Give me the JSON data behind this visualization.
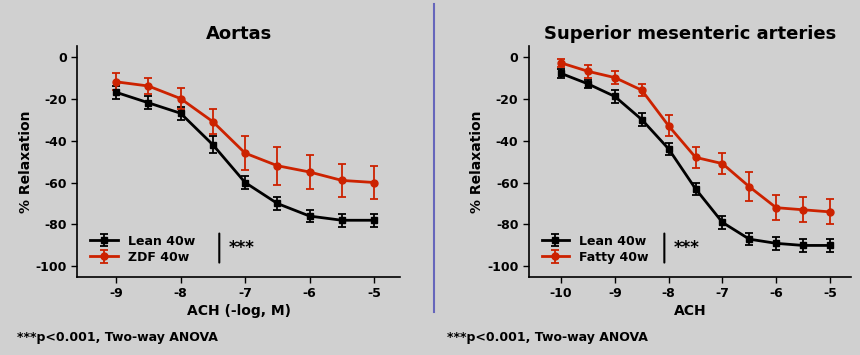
{
  "fig_bg": "#d0d0d0",
  "plot_bg": "#d0d0d0",
  "aorta": {
    "title": "Aortas",
    "xlabel": "ACH (-log, M)",
    "ylabel": "% Relaxation",
    "xlim": [
      -9.6,
      -4.6
    ],
    "ylim": [
      -105,
      5
    ],
    "xticks": [
      -9,
      -8,
      -7,
      -6,
      -5
    ],
    "yticks": [
      0,
      -20,
      -40,
      -60,
      -80,
      -100
    ],
    "lean_x": [
      -9,
      -8.5,
      -8,
      -7.5,
      -7,
      -6.5,
      -6,
      -5.5,
      -5
    ],
    "lean_y": [
      -17,
      -22,
      -27,
      -42,
      -60,
      -70,
      -76,
      -78,
      -78
    ],
    "lean_err": [
      3,
      3,
      3,
      4,
      3,
      3,
      3,
      3,
      3
    ],
    "zdf_x": [
      -9,
      -8.5,
      -8,
      -7.5,
      -7,
      -6.5,
      -6,
      -5.5,
      -5
    ],
    "zdf_y": [
      -12,
      -14,
      -20,
      -31,
      -46,
      -52,
      -55,
      -59,
      -60
    ],
    "zdf_err": [
      4,
      4,
      5,
      6,
      8,
      9,
      8,
      8,
      8
    ],
    "lean_label": "Lean 40w",
    "zdf_label": "ZDF 40w",
    "lean_color": "#000000",
    "zdf_color": "#cc2200",
    "annotation": "***",
    "footer": "***p<0.001, Two-way ANOVA"
  },
  "sma": {
    "title": "Superior mesenteric arteries",
    "xlabel": "ACH",
    "ylabel": "% Relaxation",
    "xlim": [
      -10.6,
      -4.6
    ],
    "ylim": [
      -105,
      5
    ],
    "xticks": [
      -10,
      -9,
      -8,
      -7,
      -6,
      -5
    ],
    "yticks": [
      0,
      -20,
      -40,
      -60,
      -80,
      -100
    ],
    "lean_x": [
      -10,
      -9.5,
      -9,
      -8.5,
      -8,
      -7.5,
      -7,
      -6.5,
      -6,
      -5.5,
      -5
    ],
    "lean_y": [
      -8,
      -13,
      -19,
      -30,
      -44,
      -63,
      -79,
      -87,
      -89,
      -90,
      -90
    ],
    "lean_err": [
      2,
      2,
      3,
      3,
      3,
      3,
      3,
      3,
      3,
      3,
      3
    ],
    "fatty_x": [
      -10,
      -9.5,
      -9,
      -8.5,
      -8,
      -7.5,
      -7,
      -6.5,
      -6,
      -5.5,
      -5
    ],
    "fatty_y": [
      -3,
      -7,
      -10,
      -16,
      -33,
      -48,
      -51,
      -62,
      -72,
      -73,
      -74
    ],
    "fatty_err": [
      2,
      3,
      3,
      3,
      5,
      5,
      5,
      7,
      6,
      6,
      6
    ],
    "lean_label": "Lean 40w",
    "fatty_label": "Fatty 40w",
    "lean_color": "#000000",
    "fatty_color": "#cc2200",
    "annotation": "***",
    "footer": "***p<0.001, Two-way ANOVA"
  },
  "separator_color": "#6666bb",
  "separator_lw": 1.5
}
